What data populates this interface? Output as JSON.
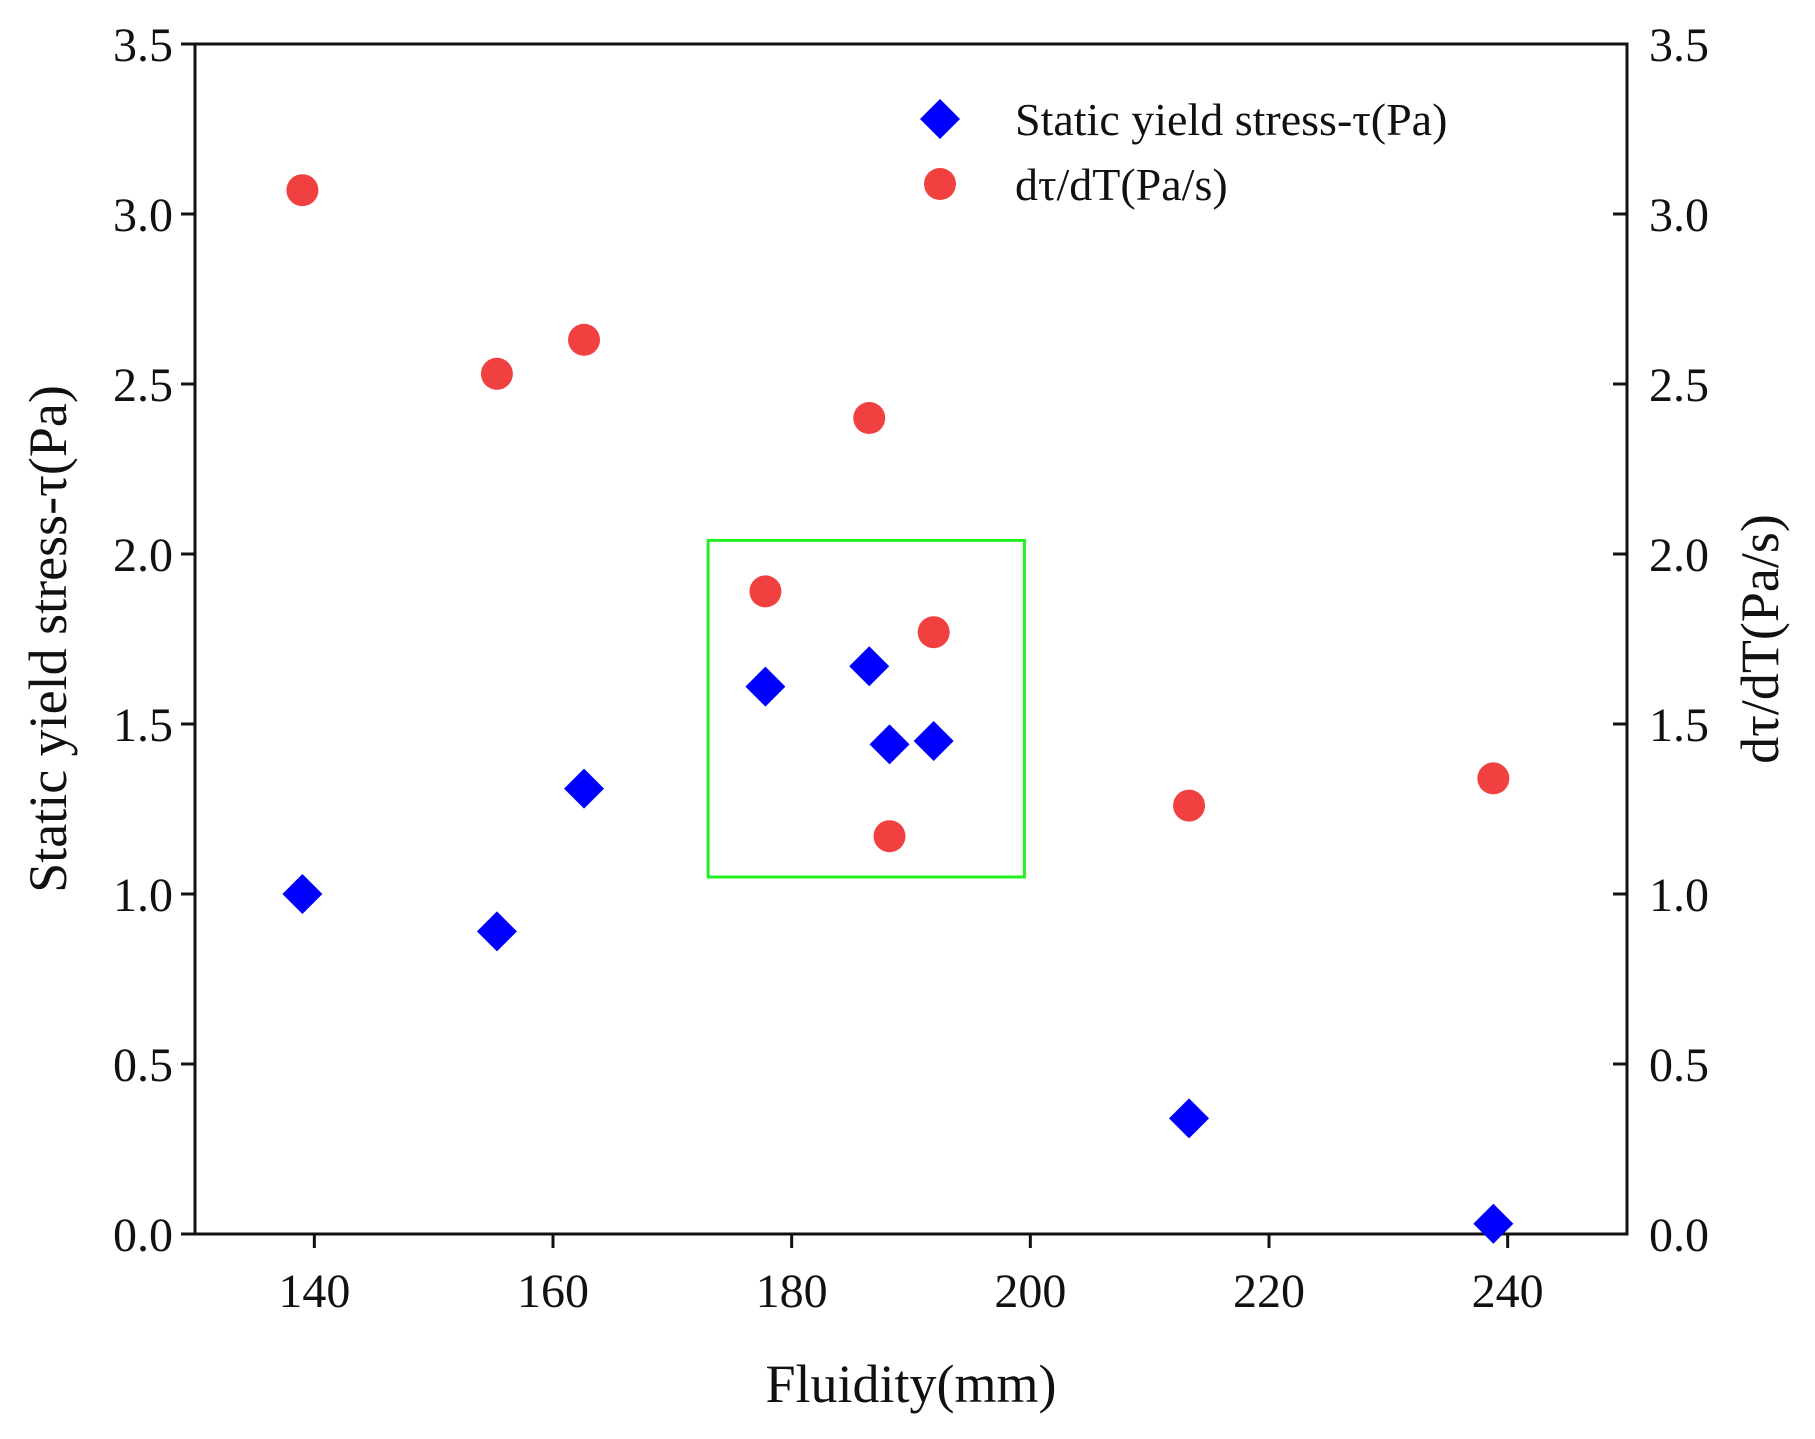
{
  "chart_data": {
    "type": "scatter",
    "title": "",
    "xlabel": "Fluidity(mm)",
    "ylabel_left": "Static yield stress-τ(Pa)",
    "ylabel_right": "dτ/dT(Pa/s)",
    "xlim": [
      130,
      250
    ],
    "ylim": [
      0,
      3.5
    ],
    "x_ticks": [
      "140",
      "160",
      "180",
      "200",
      "220",
      "240"
    ],
    "y_ticks": [
      "0.0",
      "0.5",
      "1.0",
      "1.5",
      "2.0",
      "2.5",
      "3.0",
      "3.5"
    ],
    "legend_position": "top-right",
    "series": [
      {
        "name": "Static yield stress-τ(Pa)",
        "marker": "diamond",
        "color": "#0000ff",
        "axis": "left",
        "points": [
          {
            "x": 139,
            "y": 1.0
          },
          {
            "x": 155.3,
            "y": 0.89
          },
          {
            "x": 162.6,
            "y": 1.31
          },
          {
            "x": 177.8,
            "y": 1.61
          },
          {
            "x": 186.5,
            "y": 1.67
          },
          {
            "x": 188.2,
            "y": 1.44
          },
          {
            "x": 191.9,
            "y": 1.45
          },
          {
            "x": 213.3,
            "y": 0.34
          },
          {
            "x": 238.8,
            "y": 0.03
          }
        ]
      },
      {
        "name": "dτ/dT(Pa/s)",
        "marker": "circle",
        "color": "#f04040",
        "axis": "right",
        "points": [
          {
            "x": 139,
            "y": 3.07
          },
          {
            "x": 155.3,
            "y": 2.53
          },
          {
            "x": 162.6,
            "y": 2.63
          },
          {
            "x": 177.8,
            "y": 1.89
          },
          {
            "x": 186.5,
            "y": 2.4
          },
          {
            "x": 188.2,
            "y": 1.17
          },
          {
            "x": 191.9,
            "y": 1.77
          },
          {
            "x": 213.3,
            "y": 1.26
          },
          {
            "x": 238.8,
            "y": 1.34
          }
        ]
      }
    ],
    "highlight_box": {
      "x_range": [
        173,
        199.5
      ],
      "y_range": [
        1.05,
        2.04
      ],
      "color": "#22ee22"
    }
  }
}
